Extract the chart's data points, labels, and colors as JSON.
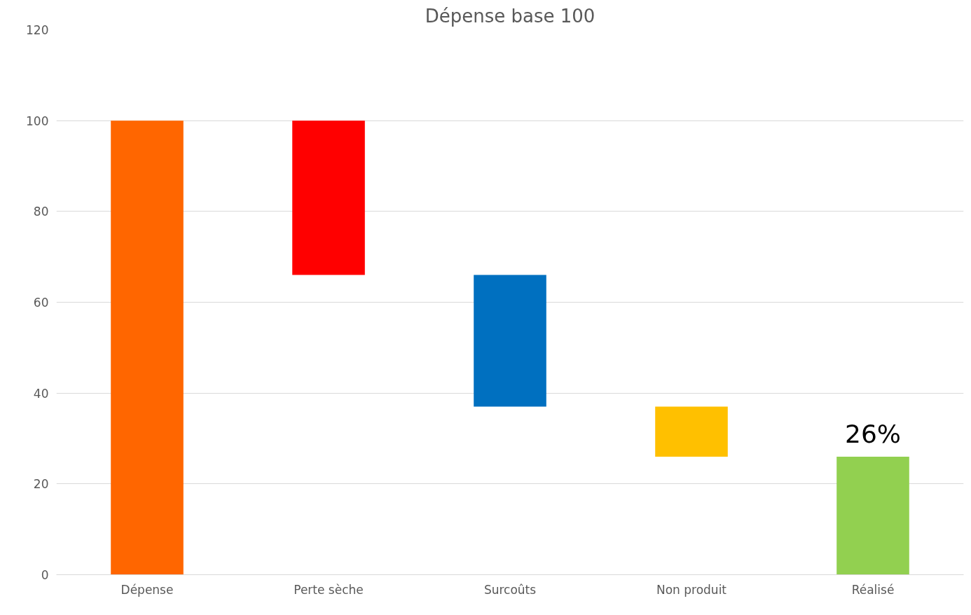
{
  "chart_data": {
    "type": "bar",
    "title": "Dépense base 100",
    "categories": [
      "Dépense",
      "Perte sèche",
      "Surcoûts",
      "Non produit",
      "Réalisé"
    ],
    "values": [
      100,
      34,
      29,
      11,
      26
    ],
    "base": [
      0,
      66,
      37,
      26,
      0
    ],
    "colors": [
      "#ff6600",
      "#ff0000",
      "#0070c0",
      "#ffc000",
      "#92d050"
    ],
    "value_labels": [
      null,
      null,
      null,
      null,
      "26%"
    ],
    "ylim": [
      0,
      120
    ],
    "yticks": [
      0,
      20,
      40,
      60,
      80,
      100,
      120
    ],
    "grid": "y"
  }
}
